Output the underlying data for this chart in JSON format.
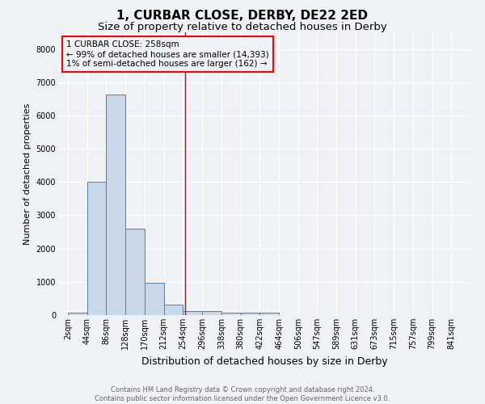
{
  "title": "1, CURBAR CLOSE, DERBY, DE22 2ED",
  "subtitle": "Size of property relative to detached houses in Derby",
  "xlabel": "Distribution of detached houses by size in Derby",
  "ylabel": "Number of detached properties",
  "footer_line1": "Contains HM Land Registry data © Crown copyright and database right 2024.",
  "footer_line2": "Contains public sector information licensed under the Open Government Licence v3.0.",
  "annotation_line1": "1 CURBAR CLOSE: 258sqm",
  "annotation_line2": "← 99% of detached houses are smaller (14,393)",
  "annotation_line3": "1% of semi-detached houses are larger (162) →",
  "bar_color": "#c8d8e8",
  "bar_edge_color": "#5080b0",
  "vline_color": "#cc0000",
  "vline_x": 258,
  "categories": [
    "2sqm",
    "44sqm",
    "86sqm",
    "128sqm",
    "170sqm",
    "212sqm",
    "254sqm",
    "296sqm",
    "338sqm",
    "380sqm",
    "422sqm",
    "464sqm",
    "506sqm",
    "547sqm",
    "589sqm",
    "631sqm",
    "673sqm",
    "715sqm",
    "757sqm",
    "799sqm",
    "841sqm"
  ],
  "bin_starts": [
    2,
    44,
    86,
    128,
    170,
    212,
    254,
    296,
    338,
    380,
    422,
    464,
    506,
    547,
    589,
    631,
    673,
    715,
    757,
    799,
    841
  ],
  "bin_width": 42,
  "values": [
    75,
    4000,
    6620,
    2600,
    960,
    320,
    130,
    120,
    75,
    80,
    70,
    0,
    0,
    0,
    0,
    0,
    0,
    0,
    0,
    0,
    0
  ],
  "ylim": [
    0,
    8500
  ],
  "yticks": [
    0,
    1000,
    2000,
    3000,
    4000,
    5000,
    6000,
    7000,
    8000
  ],
  "bg_color": "#eef2f7",
  "grid_color": "#ffffff",
  "title_fontsize": 11,
  "subtitle_fontsize": 9.5,
  "xlabel_fontsize": 9,
  "ylabel_fontsize": 8,
  "tick_fontsize": 7,
  "annotation_fontsize": 7.5,
  "footer_fontsize": 6,
  "footer_color": "#666666"
}
